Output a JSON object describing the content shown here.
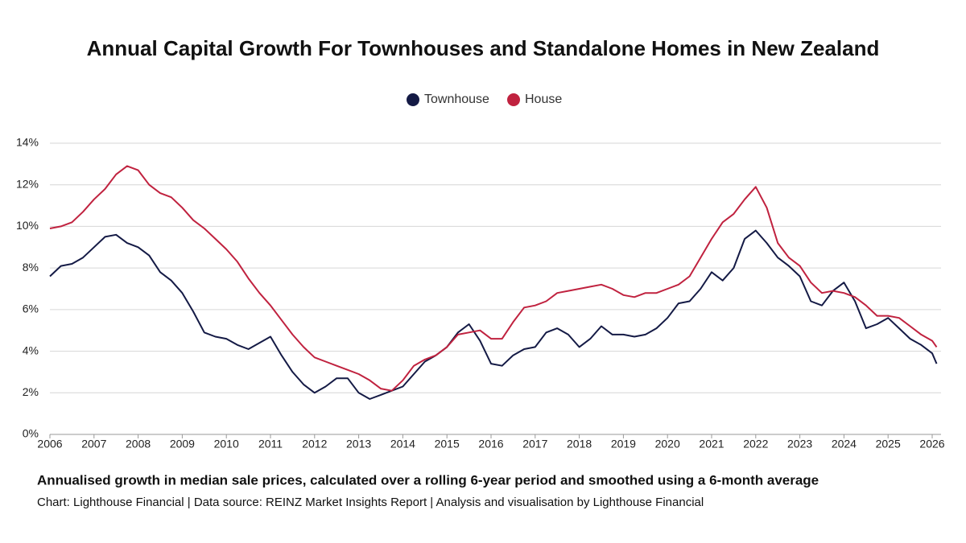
{
  "chart_data": {
    "type": "line",
    "title": "Annual Capital Growth For Townhouses and Standalone Homes in New Zealand",
    "subtitle": "Annualised growth in median sale prices, calculated over a rolling 6-year period and smoothed using a 6-month average",
    "source": "Chart: Lighthouse Financial | Data source: REINZ Market Insights Report | Analysis and visualisation by Lighthouse Financial",
    "x": [
      2006,
      2006.25,
      2006.5,
      2006.75,
      2007,
      2007.25,
      2007.5,
      2007.75,
      2008,
      2008.25,
      2008.5,
      2008.75,
      2009,
      2009.25,
      2009.5,
      2009.75,
      2010,
      2010.25,
      2010.5,
      2010.75,
      2011,
      2011.25,
      2011.5,
      2011.75,
      2012,
      2012.25,
      2012.5,
      2012.75,
      2013,
      2013.25,
      2013.5,
      2013.75,
      2014,
      2014.25,
      2014.5,
      2014.75,
      2015,
      2015.25,
      2015.5,
      2015.75,
      2016,
      2016.25,
      2016.5,
      2016.75,
      2017,
      2017.25,
      2017.5,
      2017.75,
      2018,
      2018.25,
      2018.5,
      2018.75,
      2019,
      2019.25,
      2019.5,
      2019.75,
      2020,
      2020.25,
      2020.5,
      2020.75,
      2021,
      2021.25,
      2021.5,
      2021.75,
      2022,
      2022.25,
      2022.5,
      2022.75,
      2023,
      2023.25,
      2023.5,
      2023.75,
      2024,
      2024.25,
      2024.5,
      2024.75,
      2025,
      2025.25,
      2025.5,
      2025.75,
      2026,
      2026.1
    ],
    "series": [
      {
        "name": "Townhouse",
        "color": "#141a45",
        "values": [
          7.6,
          8.1,
          8.2,
          8.5,
          9.0,
          9.5,
          9.6,
          9.2,
          9.0,
          8.6,
          7.8,
          7.4,
          6.8,
          5.9,
          4.9,
          4.7,
          4.6,
          4.3,
          4.1,
          4.4,
          4.7,
          3.8,
          3.0,
          2.4,
          2.0,
          2.3,
          2.7,
          2.7,
          2.0,
          1.7,
          1.9,
          2.1,
          2.3,
          2.9,
          3.5,
          3.8,
          4.2,
          4.9,
          5.3,
          4.5,
          3.4,
          3.3,
          3.8,
          4.1,
          4.2,
          4.9,
          5.1,
          4.8,
          4.2,
          4.6,
          5.2,
          4.8,
          4.8,
          4.7,
          4.8,
          5.1,
          5.6,
          6.3,
          6.4,
          7.0,
          7.8,
          7.4,
          8.0,
          9.4,
          9.8,
          9.2,
          8.5,
          8.1,
          7.6,
          6.4,
          6.2,
          6.9,
          7.3,
          6.4,
          5.1,
          5.3,
          5.6,
          5.1,
          4.6,
          4.3,
          3.9,
          3.4
        ]
      },
      {
        "name": "House",
        "color": "#c0223f",
        "values": [
          9.9,
          10.0,
          10.2,
          10.7,
          11.3,
          11.8,
          12.5,
          12.9,
          12.7,
          12.0,
          11.6,
          11.4,
          10.9,
          10.3,
          9.9,
          9.4,
          8.9,
          8.3,
          7.5,
          6.8,
          6.2,
          5.5,
          4.8,
          4.2,
          3.7,
          3.5,
          3.3,
          3.1,
          2.9,
          2.6,
          2.2,
          2.1,
          2.6,
          3.3,
          3.6,
          3.8,
          4.2,
          4.8,
          4.9,
          5.0,
          4.6,
          4.6,
          5.4,
          6.1,
          6.2,
          6.4,
          6.8,
          6.9,
          7.0,
          7.1,
          7.2,
          7.0,
          6.7,
          6.6,
          6.8,
          6.8,
          7.0,
          7.2,
          7.6,
          8.5,
          9.4,
          10.2,
          10.6,
          11.3,
          11.9,
          10.9,
          9.2,
          8.5,
          8.1,
          7.3,
          6.8,
          6.9,
          6.8,
          6.6,
          6.2,
          5.7,
          5.7,
          5.6,
          5.2,
          4.8,
          4.5,
          4.2
        ]
      }
    ],
    "xlim": [
      2006,
      2026.2
    ],
    "xticks": [
      2006,
      2007,
      2008,
      2009,
      2010,
      2011,
      2012,
      2013,
      2014,
      2015,
      2016,
      2017,
      2018,
      2019,
      2020,
      2021,
      2022,
      2023,
      2024,
      2025,
      2026
    ],
    "ylim": [
      0,
      14
    ],
    "yticks": [
      {
        "value": 0,
        "label": "0%"
      },
      {
        "value": 2,
        "label": "2%"
      },
      {
        "value": 4,
        "label": "4%"
      },
      {
        "value": 6,
        "label": "6%"
      },
      {
        "value": 8,
        "label": "8%"
      },
      {
        "value": 10,
        "label": "10%"
      },
      {
        "value": 12,
        "label": "12%"
      },
      {
        "value": 14,
        "label": "14%"
      }
    ],
    "grid": true,
    "legend": "top"
  }
}
